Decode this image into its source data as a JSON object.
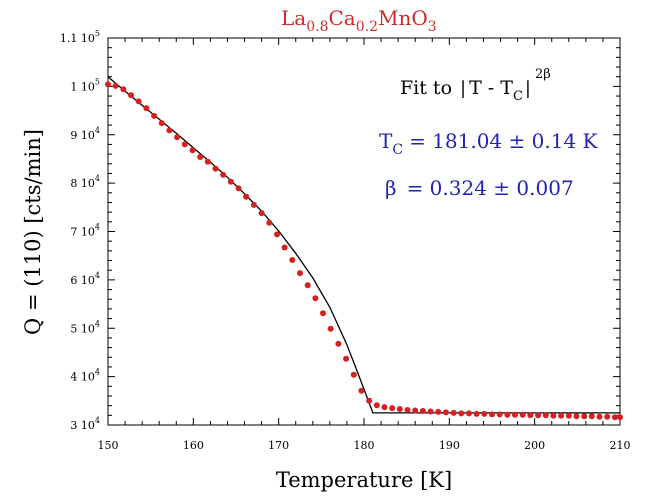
{
  "chart_data": {
    "type": "scatter",
    "title": "La0.8Ca0.2MnO3",
    "title_parts": {
      "base1": "La",
      "sub1": "0.8",
      "base2": "Ca",
      "sub2": "0.2",
      "base3": "MnO",
      "sub3": "3"
    },
    "xlabel": "Temperature [K]",
    "ylabel": "Q = (110) [cts/min]",
    "xlim": [
      150,
      210
    ],
    "ylim": [
      30000,
      110000
    ],
    "x_ticks": [
      150,
      160,
      170,
      180,
      190,
      200,
      210
    ],
    "y_ticks": [
      {
        "value": 30000,
        "mant": "3",
        "exp": "4"
      },
      {
        "value": 40000,
        "mant": "4",
        "exp": "4"
      },
      {
        "value": 50000,
        "mant": "5",
        "exp": "4"
      },
      {
        "value": 60000,
        "mant": "6",
        "exp": "4"
      },
      {
        "value": 70000,
        "mant": "7",
        "exp": "4"
      },
      {
        "value": 80000,
        "mant": "8",
        "exp": "4"
      },
      {
        "value": 90000,
        "mant": "9",
        "exp": "4"
      },
      {
        "value": 100000,
        "mant": "1",
        "exp": "5"
      },
      {
        "value": 110000,
        "mant": "1.1",
        "exp": "5"
      }
    ],
    "grid": false,
    "annotations": {
      "fit_prefix": "Fit to",
      "fit_T": "T - T",
      "fit_Tsub": "C",
      "fit_exp": "2β",
      "tc_label": "T",
      "tc_sub": "C",
      "tc_value": "= 181.04 ± 0.14 K",
      "beta_label": "β",
      "beta_value": "= 0.324 ± 0.007"
    },
    "colors": {
      "data": "#d42020",
      "fit": "#000000",
      "title": "#cc2a2a",
      "params": "#2222b8"
    },
    "series": [
      {
        "kind": "points",
        "x": [
          150.0,
          150.9,
          151.8,
          152.7,
          153.6,
          154.5,
          155.4,
          156.3,
          157.2,
          158.1,
          159.0,
          159.9,
          160.8,
          161.7,
          162.6,
          163.5,
          164.4,
          165.3,
          166.2,
          167.1,
          168.0,
          168.9,
          169.8,
          170.7,
          171.6,
          172.5,
          173.4,
          174.3,
          175.2,
          176.1,
          177.0,
          177.9,
          178.8,
          179.7,
          180.6,
          181.5,
          182.4,
          183.3,
          184.2,
          185.1,
          186.0,
          186.9,
          187.8,
          188.7,
          189.6,
          190.5,
          191.4,
          192.3,
          193.2,
          194.1,
          195.0,
          195.9,
          196.8,
          197.7,
          198.6,
          199.5,
          200.4,
          201.3,
          202.2,
          203.1,
          204.0,
          204.9,
          205.8,
          206.7,
          207.6,
          208.5,
          209.4,
          210.0
        ],
        "y": [
          100400,
          100100,
          99400,
          98200,
          96900,
          95500,
          93900,
          92400,
          90900,
          89500,
          88000,
          86800,
          85400,
          84400,
          83000,
          81700,
          80300,
          78900,
          77200,
          75500,
          73800,
          71800,
          69400,
          66700,
          64100,
          61400,
          58900,
          56200,
          53100,
          49900,
          46800,
          43700,
          40400,
          37100,
          35000,
          34100,
          33700,
          33500,
          33300,
          33100,
          33000,
          32900,
          32800,
          32700,
          32600,
          32500,
          32400,
          32400,
          32300,
          32300,
          32200,
          32200,
          32100,
          32100,
          32100,
          32000,
          32000,
          32000,
          31900,
          31900,
          31900,
          31800,
          31800,
          31800,
          31700,
          31700,
          31600,
          31600
        ]
      },
      {
        "kind": "fit",
        "x": [
          150,
          152,
          154,
          156,
          158,
          160,
          162,
          164,
          166,
          168,
          170,
          172,
          174,
          176,
          178,
          179,
          180,
          181.04,
          182,
          186,
          190,
          194,
          198,
          202,
          206,
          210
        ],
        "y": [
          102000,
          99000,
          96100,
          93200,
          90300,
          87300,
          84300,
          81200,
          77800,
          74200,
          70100,
          65500,
          60400,
          54300,
          46600,
          42000,
          37400,
          32500,
          32500,
          32500,
          32500,
          32500,
          32500,
          32500,
          32500,
          32500
        ]
      }
    ]
  }
}
